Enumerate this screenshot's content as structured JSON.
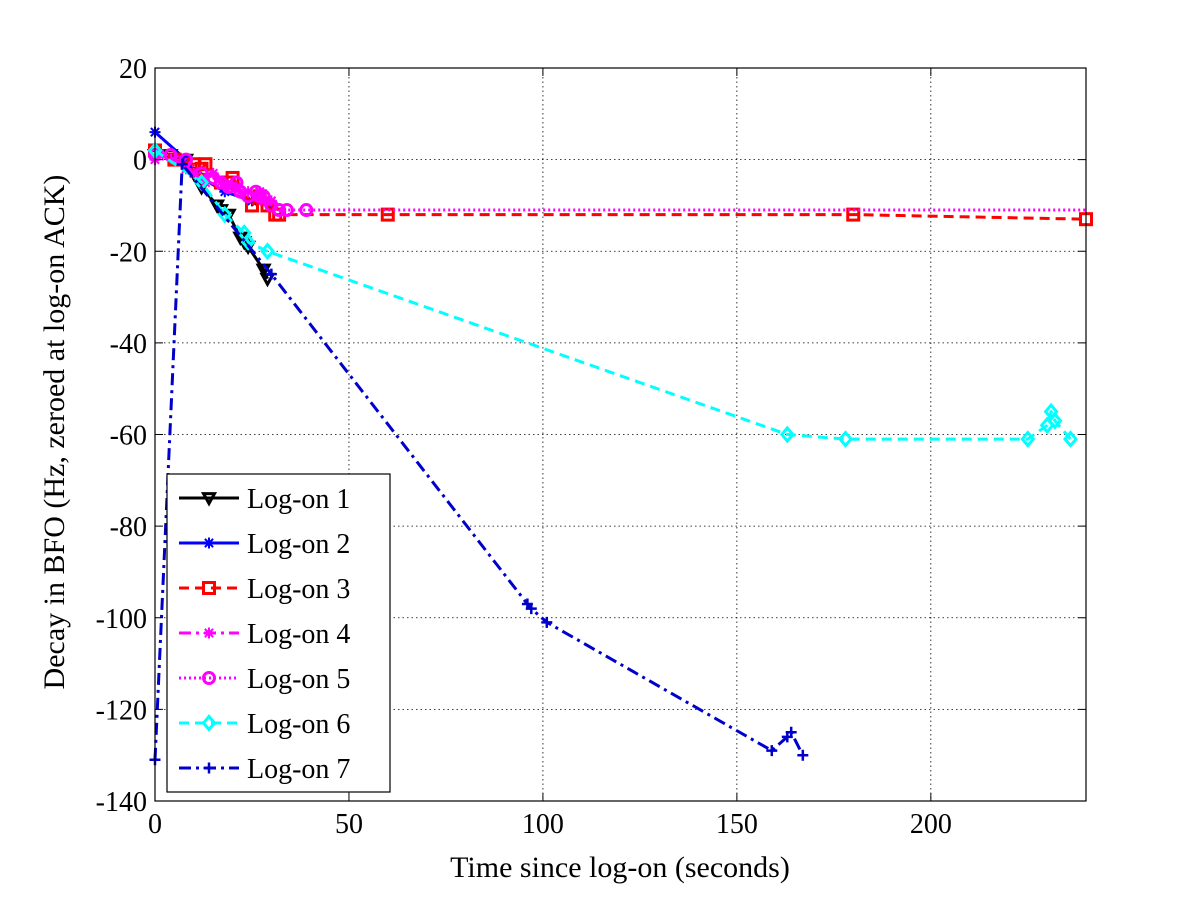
{
  "chart_data": {
    "type": "line",
    "title": "",
    "xlabel": "Time since log-on (seconds)",
    "ylabel": "Decay in BFO (Hz, zeroed at log-on ACK)",
    "xlim": [
      0,
      240
    ],
    "ylim": [
      -140,
      20
    ],
    "xticks": [
      0,
      50,
      100,
      150,
      200
    ],
    "yticks": [
      20,
      0,
      -20,
      -40,
      -60,
      -80,
      -100,
      -120,
      -140
    ],
    "xtick_labels": [
      "0",
      "50",
      "100",
      "150",
      "200"
    ],
    "ytick_labels": [
      "20",
      "0",
      "-20",
      "-40",
      "-60",
      "-80",
      "-100",
      "-120",
      "-140"
    ],
    "grid": true,
    "legend_position": "bottom-left",
    "series": [
      {
        "name": "Log-on 1",
        "color": "#000000",
        "dash": "solid",
        "marker": "triangle-down",
        "x": [
          0,
          4,
          8,
          10,
          12,
          16,
          17,
          19,
          22,
          23,
          24,
          28,
          29
        ],
        "y": [
          1,
          1,
          0,
          -3,
          -6,
          -10,
          -11,
          -12,
          -17,
          -18,
          -19,
          -24,
          -26
        ]
      },
      {
        "name": "Log-on 2",
        "color": "#0000ff",
        "dash": "solid",
        "marker": "star",
        "x": [
          0,
          8,
          12,
          18,
          25,
          30
        ],
        "y": [
          6,
          0,
          -4,
          -7,
          -9,
          -10
        ]
      },
      {
        "name": "Log-on 3",
        "color": "#ff0000",
        "dash": "dashed",
        "marker": "square",
        "x": [
          0,
          5,
          10,
          12,
          13,
          17,
          19,
          20,
          25,
          27,
          29,
          31,
          32,
          60,
          120,
          180,
          240
        ],
        "y": [
          2,
          0,
          -1,
          -2,
          -1,
          -5,
          -5,
          -4,
          -10,
          -8,
          -10,
          -12,
          -12,
          -12,
          -12,
          -12,
          -13
        ]
      },
      {
        "name": "Log-on 4",
        "color": "#ff00ff",
        "dash": "dashdot",
        "marker": "star",
        "x": [
          0,
          2,
          5,
          8,
          10,
          13,
          15,
          17,
          19,
          21,
          22,
          24,
          26,
          27,
          28,
          30
        ],
        "y": [
          0,
          1,
          0,
          -2,
          -3,
          -5,
          -3,
          -5,
          -6,
          -6,
          -7,
          -7,
          -8,
          -7,
          -9,
          -9
        ]
      },
      {
        "name": "Log-on 5",
        "color": "#ff00ff",
        "dash": "dotted",
        "marker": "circle",
        "x": [
          0,
          4,
          8,
          12,
          15,
          17,
          19,
          21,
          22,
          24,
          26,
          27,
          28,
          30,
          32,
          34,
          39,
          80,
          120,
          160,
          200,
          240
        ],
        "y": [
          1,
          1,
          0,
          -3,
          -4,
          -5,
          -6,
          -5,
          -7,
          -8,
          -7,
          -8,
          -8,
          -10,
          -11,
          -11,
          -11,
          -11,
          -11,
          -11,
          -11,
          -11
        ]
      },
      {
        "name": "Log-on 6",
        "color": "#00ffff",
        "dash": "dashed",
        "marker": "diamond",
        "x": [
          0,
          12,
          18,
          23,
          24,
          29,
          163,
          178,
          225,
          230,
          231,
          232,
          236
        ],
        "y": [
          2,
          -5,
          -12,
          -16,
          -18,
          -20,
          -60,
          -61,
          -61,
          -58,
          -55,
          -57,
          -61
        ]
      },
      {
        "name": "Log-on 7",
        "color": "#0000cc",
        "dash": "dashdot",
        "marker": "plus",
        "x": [
          0,
          7,
          30,
          96,
          97,
          101,
          159,
          163,
          164,
          167
        ],
        "y": [
          -131,
          -1,
          -25,
          -97,
          -98,
          -101,
          -129,
          -126,
          -125,
          -130
        ]
      }
    ]
  }
}
